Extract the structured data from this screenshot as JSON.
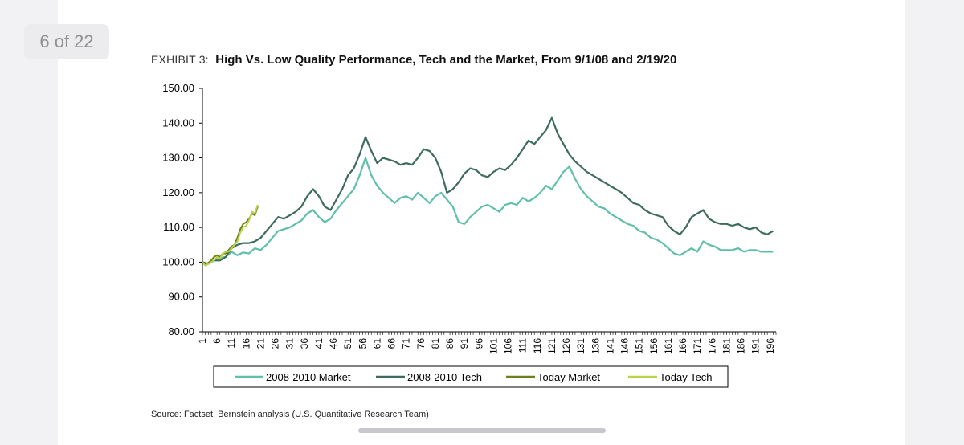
{
  "page_counter": "6 of 22",
  "exhibit": {
    "label": "EXHIBIT 3:",
    "title": "High Vs. Low Quality Performance, Tech and the Market, From 9/1/08 and 2/19/20"
  },
  "source": "Source: Factset, Bernstein analysis (U.S. Quantitative Research Team)",
  "chart_data": {
    "type": "line",
    "title": "High Vs. Low Quality Performance, Tech and the Market, From 9/1/08 and 2/19/20",
    "xlabel": "",
    "ylabel": "",
    "ylim": [
      80,
      150
    ],
    "xlim": [
      1,
      198
    ],
    "yticks": [
      "80.00",
      "90.00",
      "100.00",
      "110.00",
      "120.00",
      "130.00",
      "140.00",
      "150.00"
    ],
    "yticks_values": [
      80,
      90,
      100,
      110,
      120,
      130,
      140,
      150
    ],
    "xticks": [
      "1",
      "6",
      "11",
      "16",
      "21",
      "26",
      "31",
      "36",
      "41",
      "46",
      "51",
      "56",
      "61",
      "66",
      "71",
      "76",
      "81",
      "86",
      "91",
      "96",
      "101",
      "106",
      "111",
      "116",
      "121",
      "126",
      "131",
      "136",
      "141",
      "146",
      "151",
      "156",
      "161",
      "166",
      "171",
      "176",
      "181",
      "186",
      "191",
      "196"
    ],
    "xticks_values": [
      1,
      6,
      11,
      16,
      21,
      26,
      31,
      36,
      41,
      46,
      51,
      56,
      61,
      66,
      71,
      76,
      81,
      86,
      91,
      96,
      101,
      106,
      111,
      116,
      121,
      126,
      131,
      136,
      141,
      146,
      151,
      156,
      161,
      166,
      171,
      176,
      181,
      186,
      191,
      196
    ],
    "legend_position": "bottom",
    "series": [
      {
        "name": "2008-2010 Market",
        "color": "#5fbfa9",
        "x": [
          1,
          3,
          5,
          7,
          9,
          11,
          13,
          15,
          17,
          19,
          21,
          23,
          25,
          27,
          29,
          31,
          33,
          35,
          37,
          39,
          41,
          43,
          45,
          47,
          49,
          51,
          53,
          55,
          57,
          59,
          61,
          63,
          65,
          67,
          69,
          71,
          73,
          75,
          77,
          79,
          81,
          83,
          85,
          87,
          89,
          91,
          93,
          95,
          97,
          99,
          101,
          103,
          105,
          107,
          109,
          111,
          113,
          115,
          117,
          119,
          121,
          123,
          125,
          127,
          129,
          131,
          133,
          135,
          137,
          139,
          141,
          143,
          145,
          147,
          149,
          151,
          153,
          155,
          157,
          159,
          161,
          163,
          165,
          167,
          169,
          171,
          173,
          175,
          177,
          179,
          181,
          183,
          185,
          187,
          189,
          191,
          193,
          195,
          197
        ],
        "values": [
          100.0,
          99.5,
          100.5,
          101.2,
          101.5,
          103.0,
          102.0,
          102.8,
          102.5,
          104.0,
          103.5,
          105.0,
          107.0,
          109.0,
          109.5,
          110.0,
          111.0,
          112.0,
          114.0,
          115.0,
          113.0,
          111.5,
          112.5,
          115.0,
          117.0,
          119.0,
          121.0,
          125.0,
          130.0,
          125.0,
          122.0,
          120.0,
          118.5,
          117.0,
          118.5,
          119.0,
          118.0,
          120.0,
          118.5,
          117.0,
          119.0,
          120.0,
          118.0,
          116.0,
          111.5,
          111.0,
          113.0,
          114.5,
          116.0,
          116.5,
          115.5,
          114.5,
          116.5,
          117.0,
          116.5,
          118.5,
          117.5,
          118.5,
          120.0,
          122.0,
          121.0,
          123.5,
          126.0,
          127.5,
          124.0,
          121.0,
          119.0,
          117.5,
          116.0,
          115.5,
          114.0,
          113.0,
          112.0,
          111.0,
          110.5,
          109.0,
          108.5,
          107.0,
          106.5,
          105.5,
          104.0,
          102.5,
          102.0,
          103.0,
          104.0,
          103.0,
          106.0,
          105.0,
          104.5,
          103.5,
          103.5,
          103.5,
          104.0,
          103.0,
          103.5,
          103.5,
          103.0,
          103.0,
          103.0
        ]
      },
      {
        "name": "2008-2010 Tech",
        "color": "#3e6b60",
        "x": [
          1,
          3,
          5,
          7,
          9,
          11,
          13,
          15,
          17,
          19,
          21,
          23,
          25,
          27,
          29,
          31,
          33,
          35,
          37,
          39,
          41,
          43,
          45,
          47,
          49,
          51,
          53,
          55,
          57,
          59,
          61,
          63,
          65,
          67,
          69,
          71,
          73,
          75,
          77,
          79,
          81,
          83,
          85,
          87,
          89,
          91,
          93,
          95,
          97,
          99,
          101,
          103,
          105,
          107,
          109,
          111,
          113,
          115,
          117,
          119,
          121,
          123,
          125,
          127,
          129,
          131,
          133,
          135,
          137,
          139,
          141,
          143,
          145,
          147,
          149,
          151,
          153,
          155,
          157,
          159,
          161,
          163,
          165,
          167,
          169,
          171,
          173,
          175,
          177,
          179,
          181,
          183,
          185,
          187,
          189,
          191,
          193,
          195,
          197
        ],
        "values": [
          100.0,
          99.5,
          100.5,
          100.5,
          101.5,
          104.0,
          105.0,
          105.5,
          105.5,
          106.0,
          107.0,
          109.0,
          111.0,
          113.0,
          112.5,
          113.5,
          114.5,
          116.0,
          119.0,
          121.0,
          119.0,
          116.0,
          115.0,
          118.0,
          121.0,
          125.0,
          127.0,
          131.0,
          136.0,
          132.0,
          128.5,
          130.0,
          129.5,
          129.0,
          128.0,
          128.5,
          128.0,
          130.0,
          132.5,
          132.0,
          130.0,
          126.0,
          120.0,
          121.0,
          123.0,
          125.5,
          127.0,
          126.5,
          125.0,
          124.5,
          126.0,
          127.0,
          126.5,
          128.0,
          130.0,
          132.5,
          135.0,
          134.0,
          136.0,
          138.0,
          141.5,
          137.0,
          134.0,
          131.0,
          129.0,
          127.5,
          126.0,
          125.0,
          124.0,
          123.0,
          122.0,
          121.0,
          120.0,
          118.5,
          117.0,
          116.5,
          115.0,
          114.0,
          113.5,
          113.0,
          110.5,
          109.0,
          108.0,
          110.0,
          113.0,
          114.0,
          115.0,
          112.5,
          111.5,
          111.0,
          111.0,
          110.5,
          111.0,
          110.0,
          109.5,
          110.0,
          108.5,
          108.0,
          109.0
        ]
      },
      {
        "name": "Today Market",
        "color": "#6b7f1f",
        "x": [
          1,
          2,
          3,
          4,
          5,
          6,
          7,
          8,
          9,
          10,
          11,
          12,
          13,
          14,
          15,
          16,
          17,
          18,
          19,
          20
        ],
        "values": [
          100.0,
          99.5,
          99.8,
          100.5,
          101.5,
          102.0,
          101.5,
          102.5,
          102.5,
          103.5,
          104.5,
          105.0,
          107.0,
          109.5,
          111.0,
          111.5,
          112.5,
          114.0,
          113.5,
          116.0
        ]
      },
      {
        "name": "Today Tech",
        "color": "#b8d24a",
        "x": [
          1,
          2,
          3,
          4,
          5,
          6,
          7,
          8,
          9,
          10,
          11,
          12,
          13,
          14,
          15,
          16,
          17,
          18,
          19,
          20
        ],
        "values": [
          100.0,
          99.0,
          99.5,
          100.0,
          100.5,
          101.5,
          101.0,
          102.5,
          103.0,
          103.0,
          104.0,
          105.0,
          106.0,
          108.5,
          110.0,
          110.5,
          112.0,
          114.5,
          114.0,
          116.5
        ]
      }
    ]
  }
}
